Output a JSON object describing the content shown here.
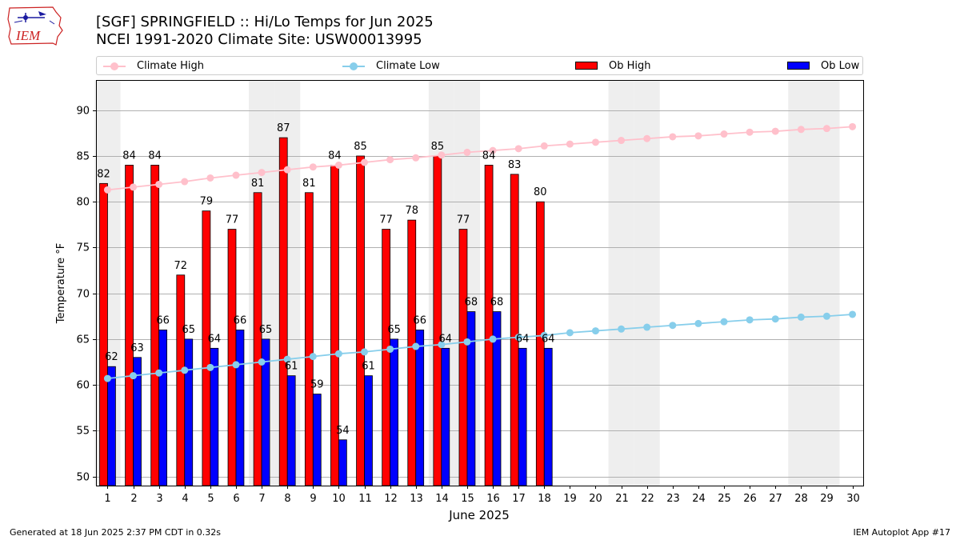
{
  "logo": {
    "text": "IEM",
    "icon": "iem-iowa-logo-icon"
  },
  "header": {
    "title_line1": "[SGF] SPRINGFIELD :: Hi/Lo Temps for Jun 2025",
    "title_line2": "NCEI 1991-2020 Climate Site: USW00013995"
  },
  "footer": {
    "left": "Generated at 18 Jun 2025 2:37 PM CDT in 0.32s",
    "right": "IEM Autoplot App #17"
  },
  "colors": {
    "ob_high": "#ff0000",
    "ob_low": "#0000ff",
    "climate_high": "#ffc0cb",
    "climate_low": "#87ceeb",
    "weekend_shade": "#eeeeee",
    "grid": "#b0b0b0"
  },
  "chart_data": {
    "type": "bar",
    "xlabel": "June 2025",
    "ylabel": "Temperature °F",
    "ylim": [
      49,
      93.3
    ],
    "yticks": [
      50,
      55,
      60,
      65,
      70,
      75,
      80,
      85,
      90
    ],
    "grid": "horizontal",
    "legend_placement": "top",
    "weekend_days": [
      1,
      7,
      8,
      14,
      15,
      21,
      22,
      28,
      29
    ],
    "days": [
      1,
      2,
      3,
      4,
      5,
      6,
      7,
      8,
      9,
      10,
      11,
      12,
      13,
      14,
      15,
      16,
      17,
      18,
      19,
      20,
      21,
      22,
      23,
      24,
      25,
      26,
      27,
      28,
      29,
      30
    ],
    "series": [
      {
        "name": "Climate High",
        "kind": "line",
        "values": [
          81.3,
          81.6,
          81.9,
          82.2,
          82.6,
          82.9,
          83.2,
          83.5,
          83.8,
          84.0,
          84.3,
          84.6,
          84.8,
          85.1,
          85.4,
          85.6,
          85.8,
          86.1,
          86.3,
          86.5,
          86.7,
          86.9,
          87.1,
          87.2,
          87.4,
          87.6,
          87.7,
          87.9,
          88.0,
          88.2
        ]
      },
      {
        "name": "Climate Low",
        "kind": "line",
        "values": [
          60.7,
          61.0,
          61.3,
          61.6,
          61.9,
          62.2,
          62.5,
          62.8,
          63.1,
          63.4,
          63.6,
          63.9,
          64.2,
          64.4,
          64.7,
          65.0,
          65.2,
          65.4,
          65.7,
          65.9,
          66.1,
          66.3,
          66.5,
          66.7,
          66.9,
          67.1,
          67.2,
          67.4,
          67.5,
          67.7
        ]
      },
      {
        "name": "Ob High",
        "kind": "bar",
        "values": [
          82,
          84,
          84,
          72,
          79,
          77,
          81,
          87,
          81,
          84,
          85,
          77,
          78,
          85,
          77,
          84,
          83,
          80
        ]
      },
      {
        "name": "Ob Low",
        "kind": "bar",
        "values": [
          62,
          63,
          66,
          65,
          64,
          66,
          65,
          61,
          59,
          54,
          61,
          65,
          66,
          64,
          68,
          68,
          64,
          64
        ]
      }
    ]
  }
}
